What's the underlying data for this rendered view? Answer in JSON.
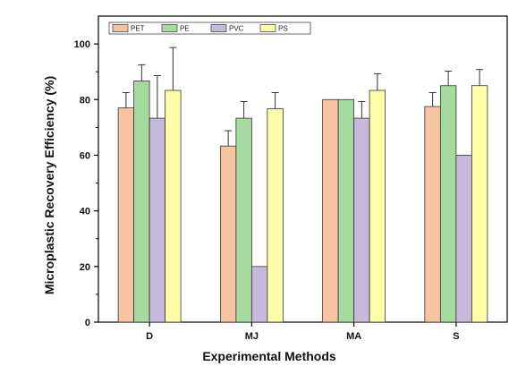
{
  "chart_data": {
    "type": "bar",
    "xlabel": "Experimental Methods",
    "ylabel": "Microplastic Recovery Efficiency (%)",
    "categories": [
      "D",
      "MJ",
      "MA",
      "S"
    ],
    "ylim": [
      0,
      110
    ],
    "yticks": [
      0,
      20,
      40,
      60,
      80,
      100
    ],
    "legend": "top-left",
    "series": [
      {
        "name": "PET",
        "color": "#F7C4A2",
        "values": [
          77,
          63.3,
          80,
          77.5
        ],
        "errors": [
          5.5,
          5.5,
          0,
          5
        ]
      },
      {
        "name": "PE",
        "color": "#A6DBA0",
        "values": [
          86.7,
          73.3,
          80,
          85
        ],
        "errors": [
          5.8,
          6,
          0,
          5.2
        ]
      },
      {
        "name": "PVC",
        "color": "#C6B9DC",
        "values": [
          73.3,
          20,
          73.3,
          60
        ],
        "errors": [
          15.3,
          0,
          6,
          0
        ]
      },
      {
        "name": "PS",
        "color": "#FFFFAA",
        "values": [
          83.3,
          76.7,
          83.3,
          85
        ],
        "errors": [
          15.4,
          5.8,
          6,
          5.8
        ]
      }
    ]
  }
}
